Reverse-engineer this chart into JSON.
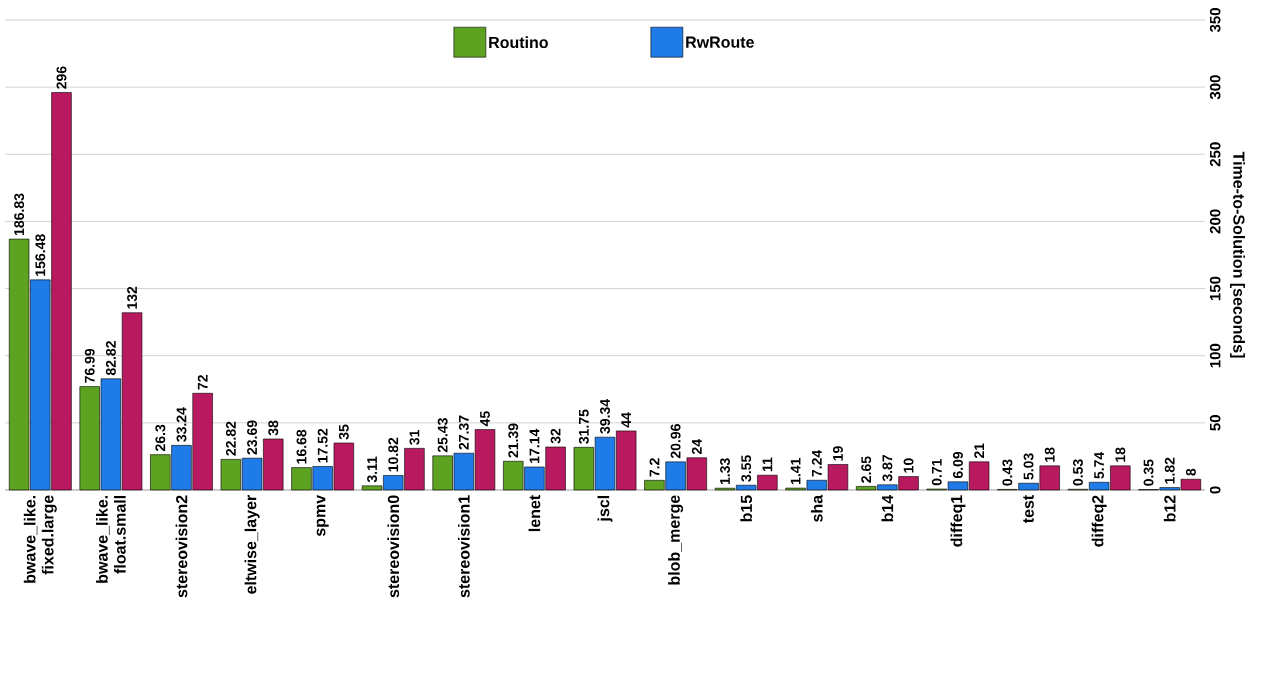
{
  "chart_data": {
    "type": "bar",
    "ylabel": "Time-to-Solution [seconds]",
    "categories": [
      "bwave_like. fixed.large",
      "bwave_like. float.small",
      "stereovision2",
      "eltwise_layer",
      "spmv",
      "stereovision0",
      "stereovision1",
      "lenet",
      "jscl",
      "blob_merge",
      "b15",
      "sha",
      "b14",
      "diffeq1",
      "test",
      "diffeq2",
      "b12"
    ],
    "series": [
      {
        "name": "Routino",
        "color": "#5ea222",
        "values": [
          186.83,
          76.99,
          26.3,
          22.82,
          16.68,
          3.11,
          25.43,
          21.39,
          31.75,
          7.2,
          1.33,
          1.41,
          2.65,
          0.71,
          0.43,
          0.53,
          0.35
        ]
      },
      {
        "name": "RwRoute",
        "color": "#1f7be8",
        "values": [
          156.48,
          82.82,
          33.24,
          23.69,
          17.52,
          10.82,
          27.37,
          17.14,
          39.34,
          20.96,
          3.55,
          7.24,
          3.87,
          6.09,
          5.03,
          5.74,
          1.82
        ]
      },
      {
        "color": "#b8195f",
        "values": [
          296,
          132,
          72,
          38,
          35,
          31,
          45,
          32,
          44,
          24,
          11,
          19,
          10,
          21,
          18,
          18,
          8
        ]
      }
    ],
    "ylim": [
      0,
      350
    ],
    "yticks": [
      0,
      50,
      100,
      150,
      200,
      250,
      300,
      350
    ],
    "grid": "y",
    "legend": "top",
    "data_labels": true
  }
}
